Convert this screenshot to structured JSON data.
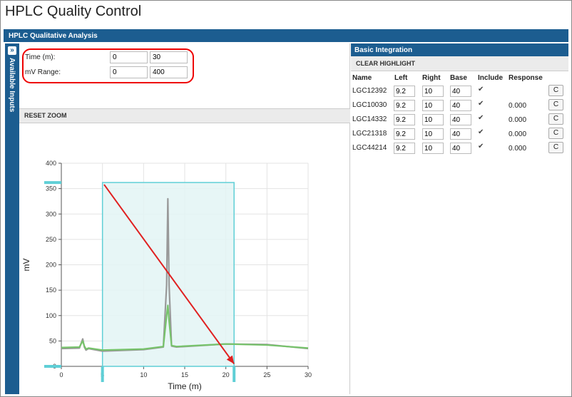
{
  "app_title": "HPLC Quality Control",
  "panel_title": "HPLC Qualitative Analysis",
  "side_tab_label": "Available Inputs",
  "ranges": {
    "time_label": "Time (m):",
    "time_min": "0",
    "time_max": "30",
    "mv_label": "mV Range:",
    "mv_min": "0",
    "mv_max": "400"
  },
  "reset_zoom_label": "RESET ZOOM",
  "integration": {
    "title": "Basic Integration",
    "clear_label": "CLEAR HIGHLIGHT",
    "columns": [
      "Name",
      "Left",
      "Right",
      "Base",
      "Include",
      "Response"
    ],
    "button_label": "C",
    "rows": [
      {
        "name": "LGC12392",
        "left": "9.2",
        "right": "10",
        "base": "40",
        "include": true,
        "response": ""
      },
      {
        "name": "LGC10030",
        "left": "9.2",
        "right": "10",
        "base": "40",
        "include": true,
        "response": "0.000"
      },
      {
        "name": "LGC14332",
        "left": "9.2",
        "right": "10",
        "base": "40",
        "include": true,
        "response": "0.000"
      },
      {
        "name": "LGC21318",
        "left": "9.2",
        "right": "10",
        "base": "40",
        "include": true,
        "response": "0.000"
      },
      {
        "name": "LGC44214",
        "left": "9.2",
        "right": "10",
        "base": "40",
        "include": true,
        "response": "0.000"
      }
    ]
  },
  "chart_data": {
    "type": "line",
    "xlabel": "Time (m)",
    "ylabel": "mV",
    "xlim": [
      0,
      30
    ],
    "ylim": [
      0,
      400
    ],
    "xticks": [
      "0",
      "5",
      "10",
      "15",
      "20",
      "25",
      "30"
    ],
    "yticks": [
      "0",
      "50",
      "100",
      "150",
      "200",
      "250",
      "300",
      "350",
      "400"
    ],
    "grid": true,
    "colors": {
      "gray": "#999999",
      "green": "#77c36b",
      "selection": "#5fcfd6",
      "arrow": "#e02020"
    },
    "series": [
      {
        "color": "#999999",
        "x": [
          0,
          2.2,
          2.6,
          2.8,
          3.0,
          3.3,
          5,
          10,
          12.4,
          12.8,
          12.95,
          13.1,
          13.4,
          14,
          20,
          25,
          30
        ],
        "y": [
          35,
          36,
          54,
          38,
          32,
          35,
          30,
          33,
          38,
          160,
          330,
          160,
          40,
          38,
          44,
          43,
          35
        ]
      },
      {
        "color": "#77c36b",
        "x": [
          0,
          2.2,
          2.6,
          2.8,
          3.0,
          3.3,
          5,
          10,
          12.4,
          12.8,
          12.95,
          13.1,
          13.4,
          14,
          20,
          25,
          30
        ],
        "y": [
          37,
          38,
          50,
          40,
          34,
          36,
          32,
          34,
          39,
          100,
          120,
          90,
          41,
          39,
          44,
          42,
          36
        ]
      }
    ],
    "selection": {
      "x": [
        5,
        21
      ],
      "y": [
        0,
        362
      ]
    },
    "arrow": {
      "from": [
        5.2,
        358
      ],
      "to": [
        21,
        5
      ]
    }
  }
}
